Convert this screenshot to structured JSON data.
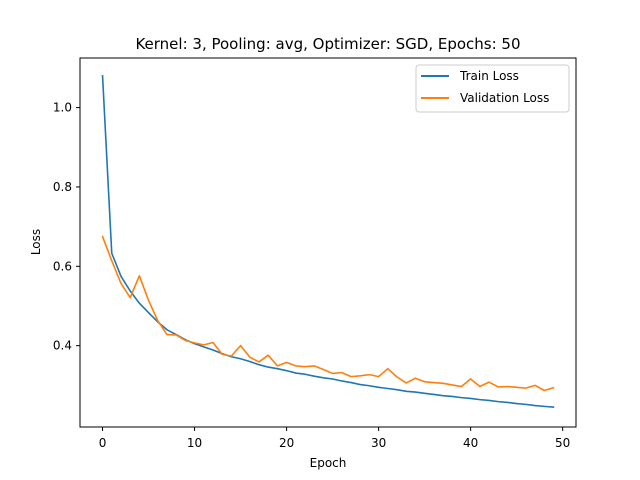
{
  "chart_data": {
    "type": "line",
    "title": "Kernel: 3, Pooling: avg, Optimizer: SGD, Epochs: 50",
    "xlabel": "Epoch",
    "ylabel": "Loss",
    "xlim": [
      -2.45,
      51.45
    ],
    "ylim": [
      0.195,
      1.125
    ],
    "xticks": [
      0,
      10,
      20,
      30,
      40,
      50
    ],
    "yticks": [
      0.4,
      0.6,
      0.8,
      1.0
    ],
    "xtick_labels": [
      "0",
      "10",
      "20",
      "30",
      "40",
      "50"
    ],
    "ytick_labels": [
      "0.4",
      "0.6",
      "0.8",
      "1.0"
    ],
    "grid": false,
    "legend_position": "upper right",
    "x": [
      0,
      1,
      2,
      3,
      4,
      5,
      6,
      7,
      8,
      9,
      10,
      11,
      12,
      13,
      14,
      15,
      16,
      17,
      18,
      19,
      20,
      21,
      22,
      23,
      24,
      25,
      26,
      27,
      28,
      29,
      30,
      31,
      32,
      33,
      34,
      35,
      36,
      37,
      38,
      39,
      40,
      41,
      42,
      43,
      44,
      45,
      46,
      47,
      48,
      49
    ],
    "series": [
      {
        "name": "Train Loss",
        "color": "#1f77b4",
        "values": [
          1.08,
          0.633,
          0.575,
          0.538,
          0.507,
          0.483,
          0.46,
          0.44,
          0.428,
          0.415,
          0.405,
          0.397,
          0.389,
          0.38,
          0.372,
          0.367,
          0.36,
          0.352,
          0.346,
          0.342,
          0.337,
          0.331,
          0.328,
          0.323,
          0.319,
          0.316,
          0.311,
          0.307,
          0.302,
          0.299,
          0.295,
          0.292,
          0.289,
          0.285,
          0.283,
          0.28,
          0.277,
          0.274,
          0.272,
          0.269,
          0.267,
          0.264,
          0.262,
          0.259,
          0.257,
          0.254,
          0.252,
          0.249,
          0.247,
          0.245
        ]
      },
      {
        "name": "Validation Loss",
        "color": "#ff7f0e",
        "values": [
          0.675,
          0.614,
          0.557,
          0.521,
          0.576,
          0.514,
          0.463,
          0.428,
          0.427,
          0.413,
          0.407,
          0.402,
          0.408,
          0.378,
          0.374,
          0.4,
          0.371,
          0.359,
          0.376,
          0.349,
          0.358,
          0.349,
          0.347,
          0.349,
          0.34,
          0.33,
          0.332,
          0.322,
          0.324,
          0.327,
          0.322,
          0.342,
          0.321,
          0.306,
          0.318,
          0.309,
          0.307,
          0.305,
          0.301,
          0.297,
          0.316,
          0.297,
          0.308,
          0.296,
          0.297,
          0.295,
          0.293,
          0.3,
          0.287,
          0.294
        ]
      }
    ]
  }
}
